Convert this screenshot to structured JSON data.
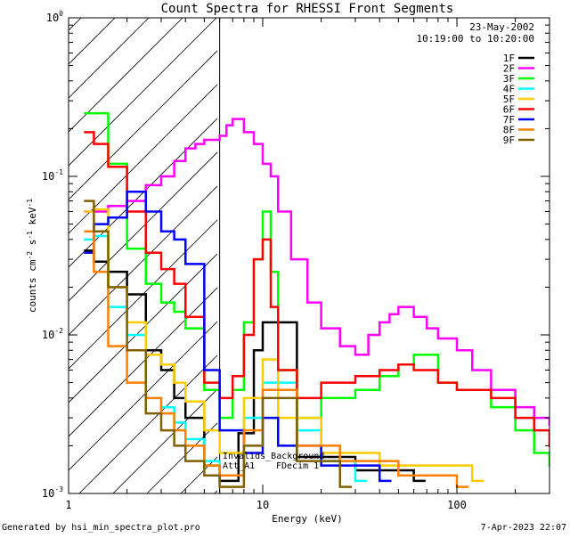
{
  "chart_data": {
    "type": "line",
    "title": "Count Spectra for RHESSI Front Segments",
    "xlabel": "Energy (keV)",
    "ylabel": "counts cm-2 s-1 keV-1",
    "xscale": "log",
    "yscale": "log",
    "xlim": [
      1,
      300
    ],
    "ylim": [
      0.001,
      1
    ],
    "x_ticks": [
      {
        "v": 1,
        "label": "1"
      },
      {
        "v": 10,
        "label": "10"
      },
      {
        "v": 100,
        "label": "100"
      }
    ],
    "y_ticks": [
      {
        "v": 0.001,
        "base": "10",
        "exp": "-3"
      },
      {
        "v": 0.01,
        "base": "10",
        "exp": "-2"
      },
      {
        "v": 0.1,
        "base": "10",
        "exp": "-1"
      },
      {
        "v": 1,
        "base": "10",
        "exp": "0"
      }
    ],
    "date": "23-May-2002",
    "time_range": "10:19:00 to 10:20:00",
    "hatched_region_max_keV": 6,
    "annotations": [
      "Invalids_Background",
      "Att_A1",
      "FDecim 1"
    ],
    "footer_left": "Generated by hsi_min_spectra_plot.pro",
    "footer_right": "7-Apr-2023 22:07",
    "grid": false,
    "legend_position": "top-right",
    "series": [
      {
        "name": "1F",
        "color": "#000000",
        "x": [
          1.2,
          1.35,
          1.6,
          2.0,
          2.5,
          3.0,
          3.5,
          4.0,
          5.0,
          6.0,
          7.5,
          9.0,
          10.0,
          15.0,
          30.0,
          60.0
        ],
        "y": [
          0.034,
          0.029,
          0.025,
          0.018,
          0.008,
          0.006,
          0.004,
          0.003,
          0.0015,
          0.0012,
          0.0024,
          0.008,
          0.012,
          0.0017,
          0.0014,
          0.0012
        ]
      },
      {
        "name": "2F",
        "color": "#ff00ff",
        "x": [
          1.2,
          1.6,
          2.0,
          2.5,
          3.0,
          3.5,
          4.0,
          4.5,
          5.0,
          5.5,
          6.0,
          6.5,
          7.0,
          8.0,
          9.0,
          10.0,
          11.0,
          12.0,
          14.0,
          17.0,
          20.0,
          25.0,
          30.0,
          35.0,
          40.0,
          45.0,
          50.0,
          60.0,
          70.0,
          80.0,
          100.0,
          120.0,
          150.0,
          200.0,
          250.0,
          300.0
        ],
        "y": [
          0.06,
          0.065,
          0.07,
          0.088,
          0.1,
          0.125,
          0.15,
          0.16,
          0.17,
          0.17,
          0.18,
          0.21,
          0.23,
          0.19,
          0.16,
          0.12,
          0.1,
          0.06,
          0.03,
          0.016,
          0.011,
          0.0085,
          0.0075,
          0.01,
          0.012,
          0.0135,
          0.015,
          0.013,
          0.011,
          0.0095,
          0.008,
          0.006,
          0.0045,
          0.0035,
          0.003,
          0.0027
        ]
      },
      {
        "name": "3F",
        "color": "#00ff00",
        "x": [
          1.2,
          1.35,
          1.6,
          2.0,
          2.5,
          3.0,
          3.5,
          4.0,
          5.0,
          6.0,
          7.0,
          8.0,
          9.0,
          10.0,
          11.0,
          12.0,
          15.0,
          20.0,
          30.0,
          40.0,
          50.0,
          60.0,
          80.0,
          100.0,
          150.0,
          200.0,
          250.0,
          300.0
        ],
        "y": [
          0.25,
          0.25,
          0.12,
          0.035,
          0.021,
          0.016,
          0.014,
          0.011,
          0.0045,
          0.003,
          0.0045,
          0.012,
          0.03,
          0.06,
          0.025,
          0.006,
          0.003,
          0.004,
          0.0045,
          0.0055,
          0.0065,
          0.0075,
          0.005,
          0.0045,
          0.0035,
          0.0025,
          0.0018,
          0.0015
        ]
      },
      {
        "name": "4F",
        "color": "#00ffff",
        "x": [
          1.2,
          1.35,
          1.6,
          2.0,
          2.5,
          3.0,
          3.5,
          4.0,
          5.0,
          6.0,
          8.0,
          10.0,
          15.0,
          20.0,
          30.0
        ],
        "y": [
          0.04,
          0.042,
          0.015,
          0.01,
          0.004,
          0.0035,
          0.0028,
          0.0022,
          0.0016,
          0.0013,
          0.003,
          0.005,
          0.0025,
          0.0016,
          0.0012
        ]
      },
      {
        "name": "5F",
        "color": "#ffcc00",
        "x": [
          1.2,
          1.35,
          1.6,
          2.0,
          2.5,
          3.0,
          3.5,
          4.0,
          5.0,
          6.0,
          8.0,
          10.0,
          12.0,
          20.0,
          40.0,
          70.0,
          120.0
        ],
        "y": [
          0.06,
          0.062,
          0.02,
          0.012,
          0.0075,
          0.0065,
          0.005,
          0.0038,
          0.0025,
          0.0018,
          0.004,
          0.007,
          0.003,
          0.0018,
          0.0015,
          0.0015,
          0.0012
        ]
      },
      {
        "name": "6F",
        "color": "#ff0000",
        "x": [
          1.2,
          1.35,
          1.6,
          2.0,
          2.5,
          3.0,
          3.5,
          4.0,
          5.0,
          6.0,
          7.0,
          8.0,
          9.0,
          10.0,
          11.0,
          12.0,
          15.0,
          20.0,
          30.0,
          40.0,
          50.0,
          60.0,
          80.0,
          100.0,
          150.0,
          200.0,
          250.0,
          300.0
        ],
        "y": [
          0.19,
          0.16,
          0.115,
          0.06,
          0.033,
          0.026,
          0.021,
          0.013,
          0.005,
          0.004,
          0.0055,
          0.01,
          0.03,
          0.04,
          0.015,
          0.006,
          0.004,
          0.005,
          0.0055,
          0.006,
          0.0065,
          0.006,
          0.005,
          0.0045,
          0.004,
          0.003,
          0.0025,
          0.002
        ]
      },
      {
        "name": "7F",
        "color": "#0000ff",
        "x": [
          1.2,
          1.35,
          1.6,
          2.0,
          2.5,
          3.0,
          3.5,
          4.0,
          5.0,
          6.0,
          8.0,
          10.0,
          12.0,
          20.0,
          40.0
        ],
        "y": [
          0.033,
          0.05,
          0.055,
          0.08,
          0.06,
          0.045,
          0.04,
          0.028,
          0.006,
          0.0025,
          0.0018,
          0.003,
          0.002,
          0.0015,
          0.0012
        ]
      },
      {
        "name": "8F",
        "color": "#ff8000",
        "x": [
          1.2,
          1.35,
          1.6,
          2.0,
          2.5,
          3.0,
          3.5,
          4.0,
          5.0,
          6.0,
          8.0,
          10.0,
          15.0,
          25.0,
          50.0,
          100.0
        ],
        "y": [
          0.045,
          0.025,
          0.0085,
          0.005,
          0.004,
          0.0032,
          0.0025,
          0.002,
          0.0015,
          0.0013,
          0.0025,
          0.0045,
          0.002,
          0.0016,
          0.0013,
          0.0011
        ]
      },
      {
        "name": "9F",
        "color": "#806000",
        "x": [
          1.2,
          1.35,
          1.6,
          2.0,
          2.5,
          3.0,
          3.5,
          4.0,
          5.0,
          6.0,
          8.0,
          10.0,
          15.0,
          25.0
        ],
        "y": [
          0.07,
          0.045,
          0.02,
          0.008,
          0.0032,
          0.0025,
          0.002,
          0.0016,
          0.0013,
          0.0011,
          0.002,
          0.004,
          0.0016,
          0.0011
        ]
      }
    ]
  }
}
